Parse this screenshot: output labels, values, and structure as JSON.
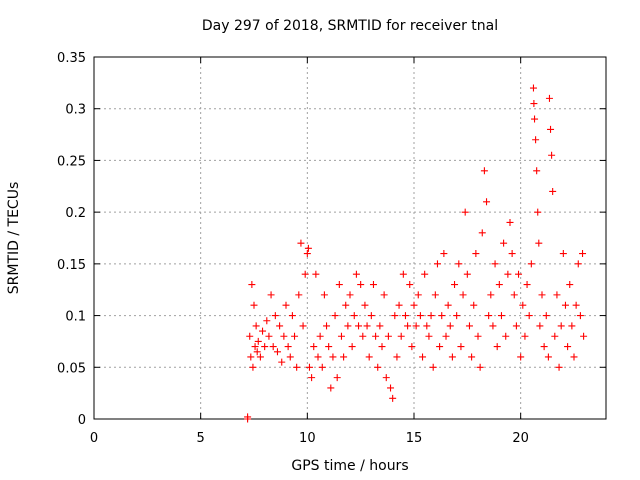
{
  "chart_data": {
    "type": "scatter",
    "title": "Day 297 of 2018, SRMTID for receiver tnal",
    "xlabel": "GPS time / hours",
    "ylabel": "SRMTID / TECUs",
    "xlim": [
      0,
      24
    ],
    "ylim": [
      0,
      0.35
    ],
    "xticks": [
      0,
      5,
      10,
      15,
      20
    ],
    "xtick_labels": [
      "0",
      "5",
      "10",
      "15",
      "20"
    ],
    "yticks": [
      0,
      0.05,
      0.1,
      0.15,
      0.2,
      0.25,
      0.3,
      0.35
    ],
    "ytick_labels": [
      "0",
      "0.05",
      "0.1",
      "0.15",
      "0.2",
      "0.25",
      "0.3",
      "0.35"
    ],
    "grid": true,
    "marker": "plus",
    "color": "#ff0000",
    "series": [
      {
        "name": "SRMTID",
        "points": [
          [
            7.2,
            0.0
          ],
          [
            7.2,
            0.002
          ],
          [
            7.3,
            0.08
          ],
          [
            7.35,
            0.06
          ],
          [
            7.4,
            0.13
          ],
          [
            7.45,
            0.05
          ],
          [
            7.5,
            0.11
          ],
          [
            7.55,
            0.07
          ],
          [
            7.6,
            0.09
          ],
          [
            7.65,
            0.065
          ],
          [
            7.7,
            0.075
          ],
          [
            7.8,
            0.06
          ],
          [
            7.9,
            0.085
          ],
          [
            8.0,
            0.07
          ],
          [
            8.1,
            0.095
          ],
          [
            8.2,
            0.08
          ],
          [
            8.3,
            0.12
          ],
          [
            8.4,
            0.07
          ],
          [
            8.5,
            0.1
          ],
          [
            8.6,
            0.065
          ],
          [
            8.7,
            0.09
          ],
          [
            8.8,
            0.055
          ],
          [
            8.9,
            0.08
          ],
          [
            9.0,
            0.11
          ],
          [
            9.1,
            0.07
          ],
          [
            9.2,
            0.06
          ],
          [
            9.3,
            0.1
          ],
          [
            9.4,
            0.08
          ],
          [
            9.5,
            0.05
          ],
          [
            9.6,
            0.12
          ],
          [
            9.7,
            0.17
          ],
          [
            9.8,
            0.09
          ],
          [
            9.9,
            0.14
          ],
          [
            10.0,
            0.16
          ],
          [
            10.05,
            0.165
          ],
          [
            10.1,
            0.05
          ],
          [
            10.2,
            0.04
          ],
          [
            10.3,
            0.07
          ],
          [
            10.4,
            0.14
          ],
          [
            10.5,
            0.06
          ],
          [
            10.6,
            0.08
          ],
          [
            10.7,
            0.05
          ],
          [
            10.8,
            0.12
          ],
          [
            10.9,
            0.09
          ],
          [
            11.0,
            0.07
          ],
          [
            11.1,
            0.03
          ],
          [
            11.2,
            0.06
          ],
          [
            11.3,
            0.1
          ],
          [
            11.4,
            0.04
          ],
          [
            11.5,
            0.13
          ],
          [
            11.6,
            0.08
          ],
          [
            11.7,
            0.06
          ],
          [
            11.8,
            0.11
          ],
          [
            11.9,
            0.09
          ],
          [
            12.0,
            0.12
          ],
          [
            12.1,
            0.07
          ],
          [
            12.2,
            0.1
          ],
          [
            12.3,
            0.14
          ],
          [
            12.4,
            0.09
          ],
          [
            12.5,
            0.13
          ],
          [
            12.6,
            0.08
          ],
          [
            12.7,
            0.11
          ],
          [
            12.8,
            0.09
          ],
          [
            12.9,
            0.06
          ],
          [
            13.0,
            0.1
          ],
          [
            13.1,
            0.13
          ],
          [
            13.2,
            0.08
          ],
          [
            13.3,
            0.05
          ],
          [
            13.4,
            0.09
          ],
          [
            13.5,
            0.07
          ],
          [
            13.6,
            0.12
          ],
          [
            13.7,
            0.04
          ],
          [
            13.8,
            0.08
          ],
          [
            13.9,
            0.03
          ],
          [
            14.0,
            0.02
          ],
          [
            14.1,
            0.1
          ],
          [
            14.2,
            0.06
          ],
          [
            14.3,
            0.11
          ],
          [
            14.4,
            0.08
          ],
          [
            14.5,
            0.14
          ],
          [
            14.6,
            0.1
          ],
          [
            14.7,
            0.09
          ],
          [
            14.8,
            0.13
          ],
          [
            14.9,
            0.07
          ],
          [
            15.0,
            0.11
          ],
          [
            15.1,
            0.09
          ],
          [
            15.2,
            0.12
          ],
          [
            15.3,
            0.1
          ],
          [
            15.4,
            0.06
          ],
          [
            15.5,
            0.14
          ],
          [
            15.6,
            0.09
          ],
          [
            15.7,
            0.08
          ],
          [
            15.8,
            0.1
          ],
          [
            15.9,
            0.05
          ],
          [
            16.0,
            0.12
          ],
          [
            16.1,
            0.15
          ],
          [
            16.2,
            0.07
          ],
          [
            16.3,
            0.1
          ],
          [
            16.4,
            0.16
          ],
          [
            16.5,
            0.08
          ],
          [
            16.6,
            0.11
          ],
          [
            16.7,
            0.09
          ],
          [
            16.8,
            0.06
          ],
          [
            16.9,
            0.13
          ],
          [
            17.0,
            0.1
          ],
          [
            17.1,
            0.15
          ],
          [
            17.2,
            0.07
          ],
          [
            17.3,
            0.12
          ],
          [
            17.4,
            0.2
          ],
          [
            17.5,
            0.14
          ],
          [
            17.6,
            0.09
          ],
          [
            17.7,
            0.06
          ],
          [
            17.8,
            0.11
          ],
          [
            17.9,
            0.16
          ],
          [
            18.0,
            0.08
          ],
          [
            18.1,
            0.05
          ],
          [
            18.2,
            0.18
          ],
          [
            18.3,
            0.24
          ],
          [
            18.4,
            0.21
          ],
          [
            18.5,
            0.1
          ],
          [
            18.6,
            0.12
          ],
          [
            18.7,
            0.09
          ],
          [
            18.8,
            0.15
          ],
          [
            18.9,
            0.07
          ],
          [
            19.0,
            0.13
          ],
          [
            19.1,
            0.1
          ],
          [
            19.2,
            0.17
          ],
          [
            19.3,
            0.08
          ],
          [
            19.4,
            0.14
          ],
          [
            19.5,
            0.19
          ],
          [
            19.6,
            0.16
          ],
          [
            19.7,
            0.12
          ],
          [
            19.8,
            0.09
          ],
          [
            19.9,
            0.14
          ],
          [
            20.0,
            0.06
          ],
          [
            20.1,
            0.11
          ],
          [
            20.2,
            0.08
          ],
          [
            20.3,
            0.13
          ],
          [
            20.4,
            0.1
          ],
          [
            20.5,
            0.15
          ],
          [
            20.6,
            0.32
          ],
          [
            20.62,
            0.305
          ],
          [
            20.65,
            0.29
          ],
          [
            20.7,
            0.27
          ],
          [
            20.75,
            0.24
          ],
          [
            20.8,
            0.2
          ],
          [
            20.85,
            0.17
          ],
          [
            20.9,
            0.09
          ],
          [
            21.0,
            0.12
          ],
          [
            21.1,
            0.07
          ],
          [
            21.2,
            0.1
          ],
          [
            21.3,
            0.06
          ],
          [
            21.35,
            0.31
          ],
          [
            21.4,
            0.28
          ],
          [
            21.45,
            0.255
          ],
          [
            21.5,
            0.22
          ],
          [
            21.6,
            0.08
          ],
          [
            21.7,
            0.12
          ],
          [
            21.8,
            0.05
          ],
          [
            21.9,
            0.09
          ],
          [
            22.0,
            0.16
          ],
          [
            22.1,
            0.11
          ],
          [
            22.2,
            0.07
          ],
          [
            22.3,
            0.13
          ],
          [
            22.4,
            0.09
          ],
          [
            22.5,
            0.06
          ],
          [
            22.6,
            0.11
          ],
          [
            22.7,
            0.15
          ],
          [
            22.8,
            0.1
          ],
          [
            22.9,
            0.16
          ],
          [
            22.95,
            0.08
          ]
        ]
      }
    ]
  }
}
